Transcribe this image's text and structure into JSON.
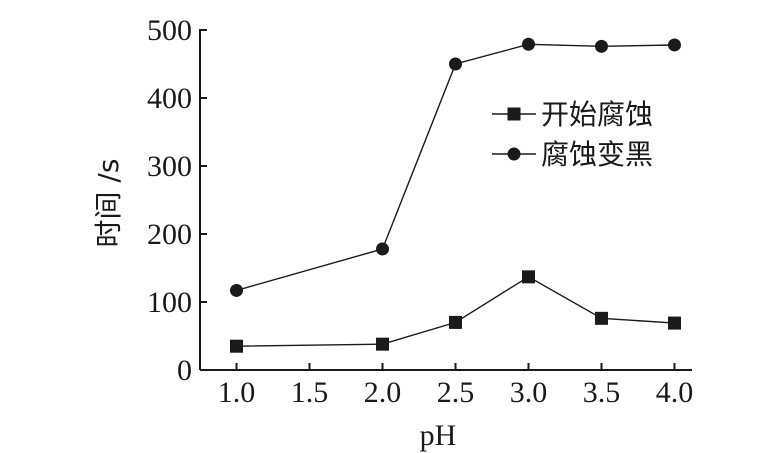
{
  "chart_data": {
    "type": "line",
    "title": "",
    "xlabel": "pH",
    "ylabel": "时间 /s",
    "x": [
      1.0,
      2.0,
      2.5,
      3.0,
      3.5,
      4.0
    ],
    "x_tick_labels": [
      "1.0",
      "1.5",
      "2.0",
      "2.5",
      "3.0",
      "3.5",
      "4.0"
    ],
    "x_ticks": [
      1.0,
      1.5,
      2.0,
      2.5,
      3.0,
      3.5,
      4.0
    ],
    "xlim": [
      0.75,
      4.12
    ],
    "y_ticks": [
      0,
      100,
      200,
      300,
      400,
      500
    ],
    "y_tick_labels": [
      "0",
      "100",
      "200",
      "300",
      "400",
      "500"
    ],
    "ylim": [
      0,
      500
    ],
    "grid": false,
    "legend_position": "right",
    "series": [
      {
        "name": "开始腐蚀",
        "marker": "square",
        "color": "#1a1a1a",
        "values": [
          35,
          38,
          70,
          137,
          76,
          69
        ]
      },
      {
        "name": "腐蚀变黑",
        "marker": "circle",
        "color": "#1a1a1a",
        "values": [
          117,
          178,
          450,
          479,
          476,
          478
        ]
      }
    ]
  }
}
